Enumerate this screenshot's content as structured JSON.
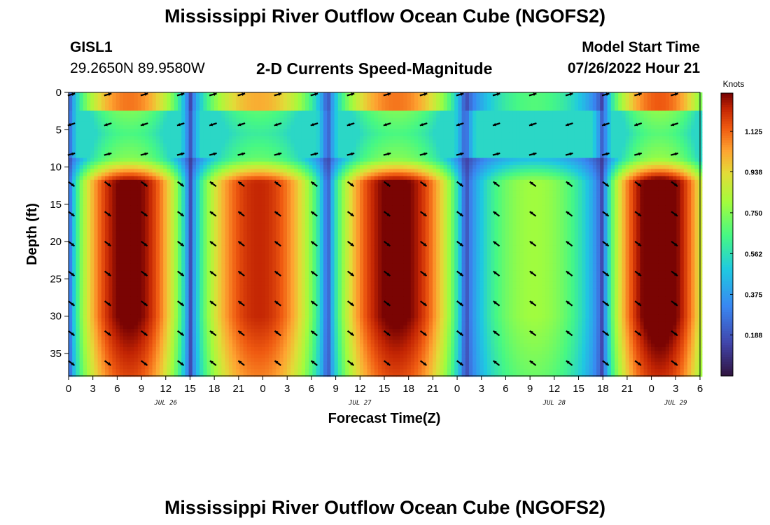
{
  "page": {
    "title": "Mississippi River Outflow Ocean Cube (NGOFS2)",
    "station_id": "GISL1",
    "station_coords": "29.2650N  89.9580W",
    "subtitle": "2-D Currents Speed-Magnitude",
    "model_start_label": "Model Start Time",
    "model_start_value": "07/26/2022 Hour 21",
    "second_title": "Mississippi River Outflow Ocean Cube (NGOFS2)"
  },
  "chart_data": {
    "type": "heatmap",
    "title": "2-D Currents Speed-Magnitude",
    "xlabel": "Forecast Time(Z)",
    "ylabel": "Depth (ft)",
    "x_range_hours": [
      0,
      78
    ],
    "ylim": [
      0,
      38
    ],
    "y_inverted": true,
    "x_tick_labels": [
      "0",
      "3",
      "6",
      "9",
      "12",
      "15",
      "18",
      "21",
      "0",
      "3",
      "6",
      "9",
      "12",
      "15",
      "18",
      "21",
      "0",
      "3",
      "6",
      "9",
      "12",
      "15",
      "18",
      "21",
      "0",
      "3",
      "6"
    ],
    "day_labels": [
      {
        "label": "JUL 26",
        "hour": 12
      },
      {
        "label": "JUL 27",
        "hour": 36
      },
      {
        "label": "JUL 28",
        "hour": 60
      },
      {
        "label": "JUL 29",
        "hour": 75
      }
    ],
    "y_ticks": [
      0,
      5,
      10,
      15,
      20,
      25,
      30,
      35
    ],
    "colorbar": {
      "label": "Knots",
      "min": 0,
      "max": 1.3,
      "ticks": [
        "1.125",
        "0.938",
        "0.750",
        "0.562",
        "0.375",
        "0.188"
      ],
      "tick_values": [
        1.125,
        0.938,
        0.75,
        0.562,
        0.375,
        0.188
      ]
    },
    "speed_segments_hours": [
      {
        "start": 0,
        "end": 15,
        "peak": 1.25
      },
      {
        "start": 15,
        "end": 32,
        "peak": 1.15
      },
      {
        "start": 32,
        "end": 49,
        "peak": 1.25
      },
      {
        "start": 49,
        "end": 66,
        "peak": 0.72
      },
      {
        "start": 66,
        "end": 80,
        "peak": 1.3
      }
    ],
    "arrow_direction_by_segment": [
      "southeast",
      "northwest",
      "southeast",
      "northwest",
      "southeast"
    ],
    "arrow_depths_ft": [
      0,
      4,
      8,
      12,
      16,
      20,
      24,
      28,
      32,
      36
    ],
    "arrow_hours": [
      0,
      4.5,
      9,
      13.5,
      17.5,
      21,
      25.5,
      30,
      34.5,
      39,
      43.5,
      48,
      52.5,
      57,
      61.5,
      66,
      70,
      74.5
    ]
  }
}
